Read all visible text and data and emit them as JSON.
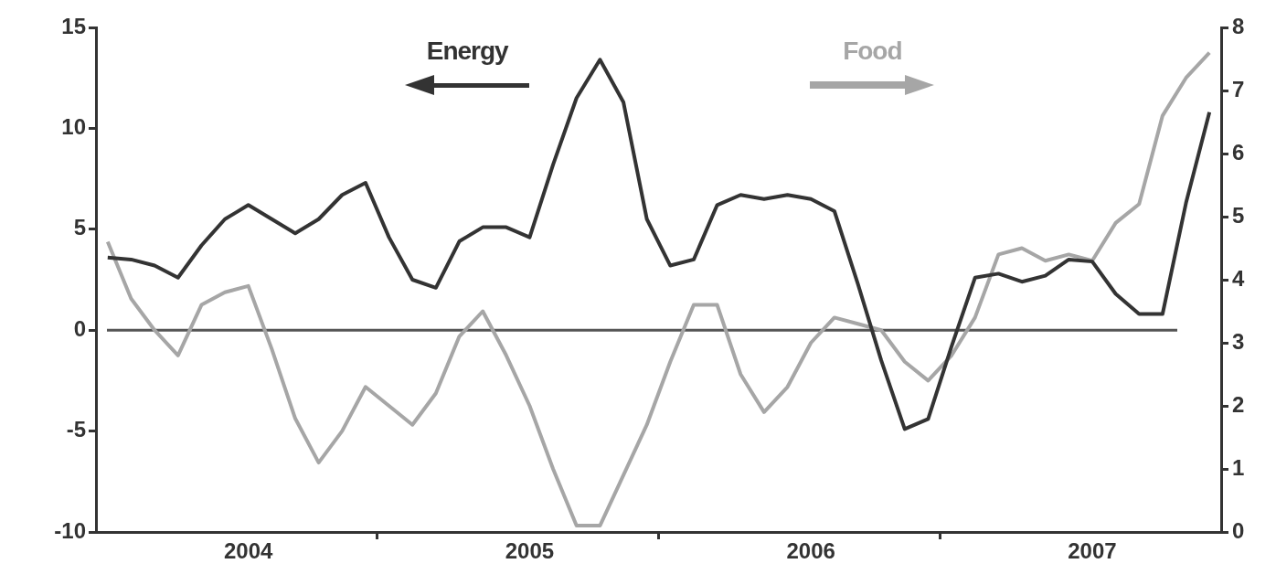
{
  "chart_data": {
    "type": "line",
    "categories": [
      null,
      null,
      null,
      null,
      null,
      null,
      "2004",
      null,
      null,
      null,
      null,
      null,
      null,
      null,
      null,
      null,
      null,
      null,
      "2005",
      null,
      null,
      null,
      null,
      null,
      null,
      null,
      null,
      null,
      null,
      null,
      "2006",
      null,
      null,
      null,
      null,
      null,
      null,
      null,
      null,
      null,
      null,
      null,
      "2007",
      null,
      null,
      null,
      null,
      null
    ],
    "ylim": [
      -10,
      15
    ],
    "yticks": [
      -10,
      -5,
      0,
      5,
      10,
      15
    ],
    "y2lim": [
      0,
      8
    ],
    "y2ticks": [
      0,
      1,
      2,
      3,
      4,
      5,
      6,
      7,
      8
    ],
    "legend": "top",
    "marker": "none",
    "ref_lines": [
      {
        "axis": "y",
        "value": 0,
        "color": "#555555"
      }
    ],
    "series": [
      {
        "name": "Energy",
        "color": "#333333",
        "axis": "y",
        "values": [
          3.6,
          3.5,
          3.2,
          2.6,
          4.2,
          5.5,
          6.2,
          5.5,
          4.8,
          5.5,
          6.7,
          7.3,
          4.6,
          2.5,
          2.1,
          4.4,
          5.1,
          5.1,
          4.6,
          8.2,
          11.5,
          13.4,
          11.3,
          5.5,
          3.2,
          3.5,
          6.2,
          6.7,
          6.5,
          6.7,
          6.5,
          5.9,
          2.3,
          -1.5,
          -4.9,
          -4.4,
          -0.8,
          2.6,
          2.8,
          2.4,
          2.7,
          3.5,
          3.4,
          1.8,
          0.8,
          0.8,
          6.3,
          10.8
        ]
      },
      {
        "name": "Food",
        "color": "#a6a6a6",
        "axis": "y2",
        "values": [
          4.6,
          3.7,
          3.2,
          2.8,
          3.6,
          3.8,
          3.9,
          2.9,
          1.8,
          1.1,
          1.6,
          2.3,
          2.0,
          1.7,
          2.2,
          3.1,
          3.5,
          2.8,
          2.0,
          1.0,
          0.1,
          0.1,
          0.9,
          1.7,
          2.7,
          3.6,
          3.6,
          2.5,
          1.9,
          2.3,
          3.0,
          3.4,
          3.3,
          3.2,
          2.7,
          2.4,
          2.8,
          3.4,
          4.4,
          4.5,
          4.3,
          4.4,
          4.3,
          4.9,
          5.2,
          6.6,
          7.2,
          7.6
        ]
      }
    ]
  }
}
